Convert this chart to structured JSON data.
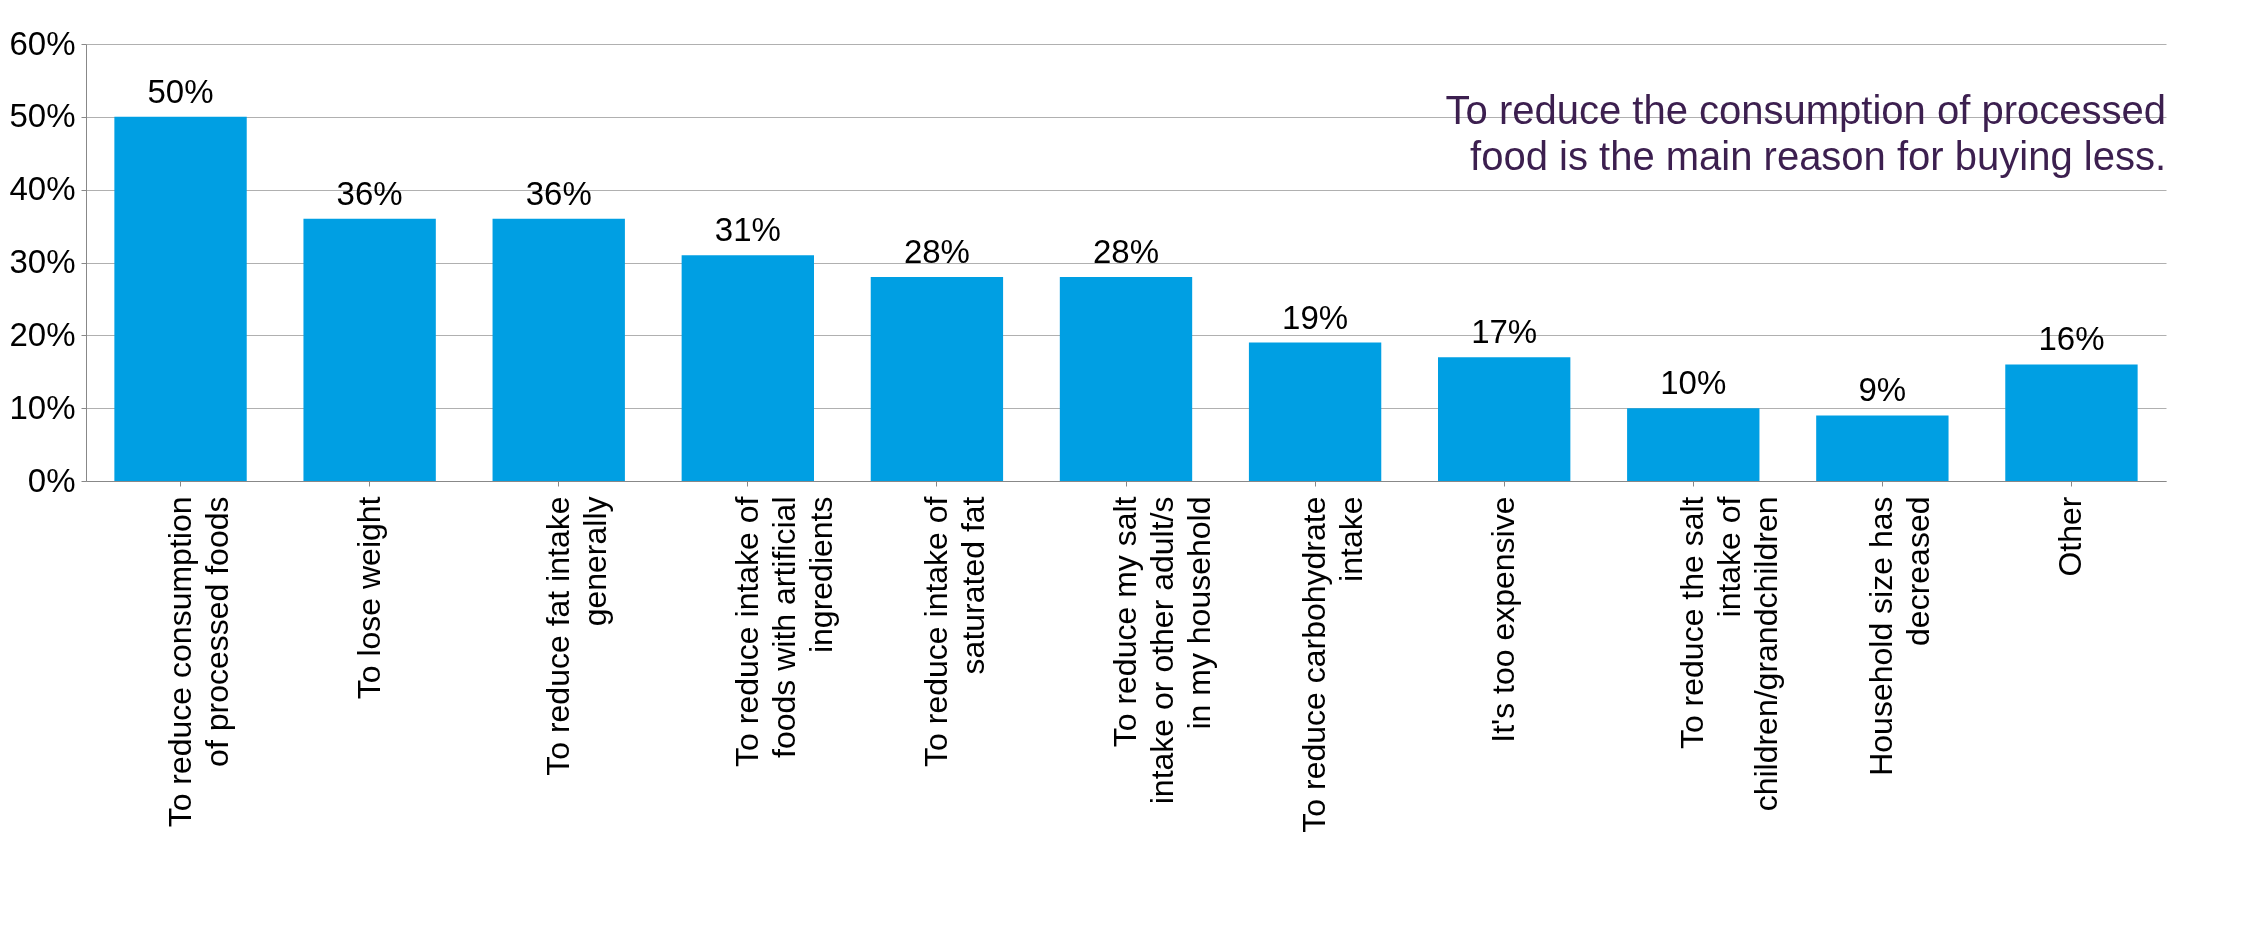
{
  "chart_data": {
    "type": "bar",
    "title": "To reduce the consumption of processed food is the main reason for buying less.",
    "categories": [
      "To reduce consumption of processed foods",
      "To lose weight",
      "To reduce fat intake generally",
      "To reduce intake of foods with artificial ingredients",
      "To reduce intake of saturated fat",
      "To reduce my salt intake or other adult/s in my household",
      "To reduce carbohydrate intake",
      "It's too expensive",
      "To reduce the salt intake of children/grandchildren",
      "Household size has decreased",
      "Other"
    ],
    "values": [
      50,
      36,
      36,
      31,
      28,
      28,
      19,
      17,
      10,
      9,
      16
    ],
    "value_labels": [
      "50%",
      "36%",
      "36%",
      "31%",
      "28%",
      "28%",
      "19%",
      "17%",
      "10%",
      "9%",
      "16%"
    ],
    "color": "#009fe3",
    "ylim": [
      0,
      60
    ],
    "yticks": [
      {
        "value": 0,
        "label": "0%"
      },
      {
        "value": 10,
        "label": "10%"
      },
      {
        "value": 20,
        "label": "20%"
      },
      {
        "value": 30,
        "label": "30%"
      },
      {
        "value": 40,
        "label": "40%"
      },
      {
        "value": 50,
        "label": "50%"
      },
      {
        "value": 60,
        "label": "60%"
      }
    ],
    "grid": "y"
  }
}
